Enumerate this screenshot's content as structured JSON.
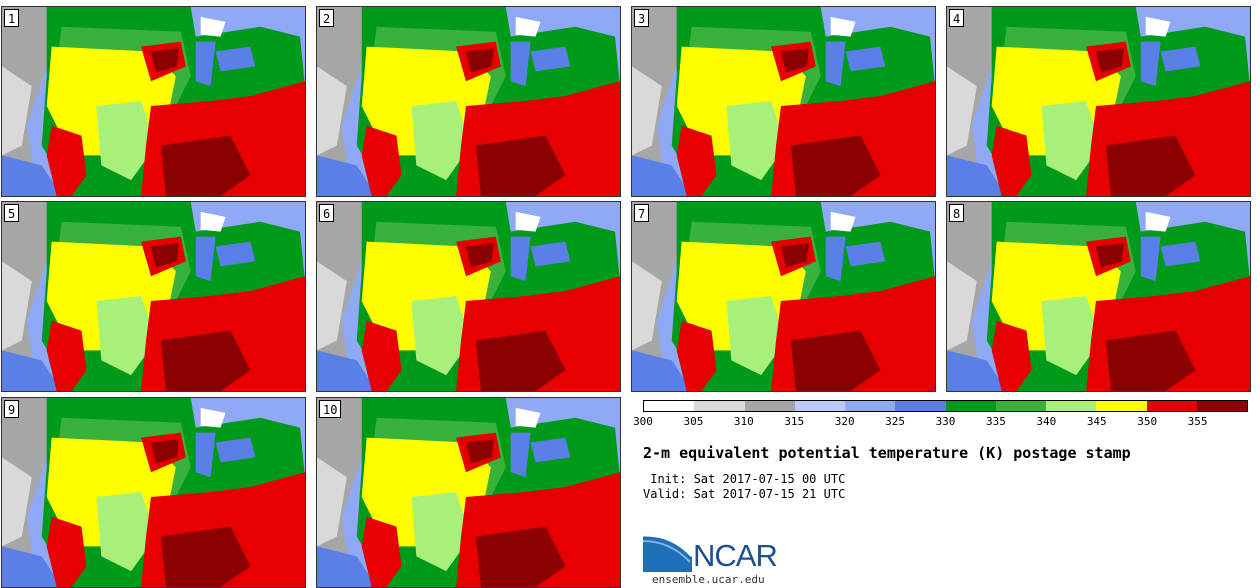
{
  "panels": [
    {
      "number": "1"
    },
    {
      "number": "2"
    },
    {
      "number": "3"
    },
    {
      "number": "4"
    },
    {
      "number": "5"
    },
    {
      "number": "6"
    },
    {
      "number": "7"
    },
    {
      "number": "8"
    },
    {
      "number": "9"
    },
    {
      "number": "10"
    }
  ],
  "colorbar": {
    "colors": [
      "#ffffff",
      "#d9d9d9",
      "#a6a6a6",
      "#b9cbfa",
      "#8fa9f4",
      "#5a80e8",
      "#009a1b",
      "#38b23a",
      "#a8f07a",
      "#ffff00",
      "#e60000",
      "#8b0000"
    ],
    "labels": [
      "300",
      "305",
      "310",
      "315",
      "320",
      "325",
      "330",
      "335",
      "340",
      "345",
      "350",
      "355"
    ]
  },
  "title": "2-m equivalent potential temperature (K) postage stamp",
  "init": " Init: Sat 2017-07-15 00 UTC",
  "valid": "Valid: Sat 2017-07-15 21 UTC",
  "logo": {
    "text": "NCAR",
    "url": "ensemble.ucar.edu"
  }
}
